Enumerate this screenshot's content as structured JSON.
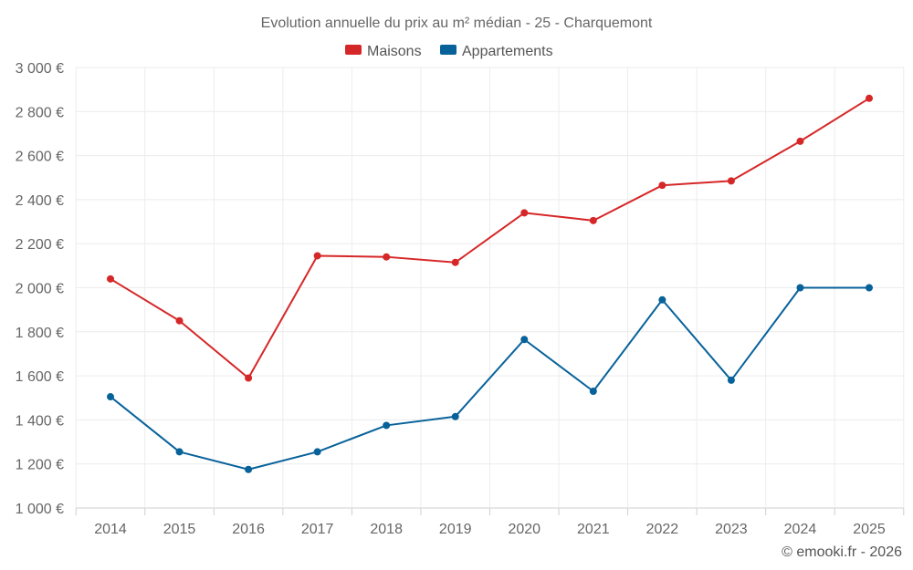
{
  "chart_data": {
    "type": "line",
    "title": "Evolution annuelle du prix au m² médian - 25 - Charquemont",
    "categories": [
      "2014",
      "2015",
      "2016",
      "2017",
      "2018",
      "2019",
      "2020",
      "2021",
      "2022",
      "2023",
      "2024",
      "2025"
    ],
    "series": [
      {
        "name": "Maisons",
        "color": "#d62728",
        "values": [
          2040,
          1850,
          1590,
          2145,
          2140,
          2115,
          2340,
          2305,
          2465,
          2485,
          2665,
          2860
        ]
      },
      {
        "name": "Appartements",
        "color": "#08629a",
        "values": [
          1505,
          1255,
          1175,
          1255,
          1375,
          1415,
          1765,
          1530,
          1945,
          1580,
          2000,
          2000
        ]
      }
    ],
    "ylim": [
      1000,
      3000
    ],
    "yticks": [
      1000,
      1200,
      1400,
      1600,
      1800,
      2000,
      2200,
      2400,
      2600,
      2800,
      3000
    ],
    "ytick_labels": [
      "1 000 €",
      "1 200 €",
      "1 400 €",
      "1 600 €",
      "1 800 €",
      "2 000 €",
      "2 200 €",
      "2 400 €",
      "2 600 €",
      "2 800 €",
      "3 000 €"
    ],
    "legend_position": "top-center",
    "grid": true
  },
  "credit": "© emooki.fr - 2026"
}
